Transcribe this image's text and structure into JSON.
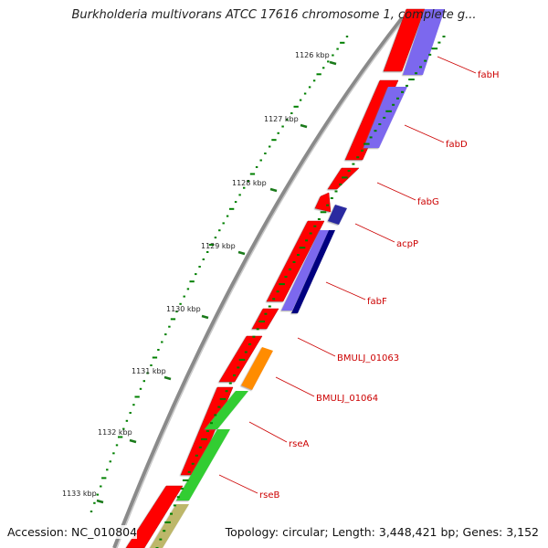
{
  "title": "Burkholderia multivorans ATCC 17616 chromosome 1, complete g...",
  "accession": "Accession: NC_010804",
  "topology": "Topology: circular; Length: 3,448,421 bp; Genes: 3,152",
  "ticks": [
    "1126 kbp",
    "1127 kbp",
    "1128 kbp",
    "1129 kbp",
    "1130 kbp",
    "1131 kbp",
    "1132 kbp",
    "1133 kbp"
  ],
  "genes": [
    "fabH",
    "fabD",
    "fabG",
    "acpP",
    "fabF",
    "BMULJ_01063",
    "BMULJ_01064",
    "rseA",
    "rseB"
  ],
  "colors": {
    "cds": "#ff0000",
    "blast_violet": "#7b68ee",
    "blast_navy": "#000080",
    "blast_orange": "#ff8c00",
    "blast_green": "#32cd32",
    "blast_khaki": "#bdb76b",
    "backbone": "#808080",
    "gc_green": "#008000",
    "label_red": "#cc0000"
  }
}
